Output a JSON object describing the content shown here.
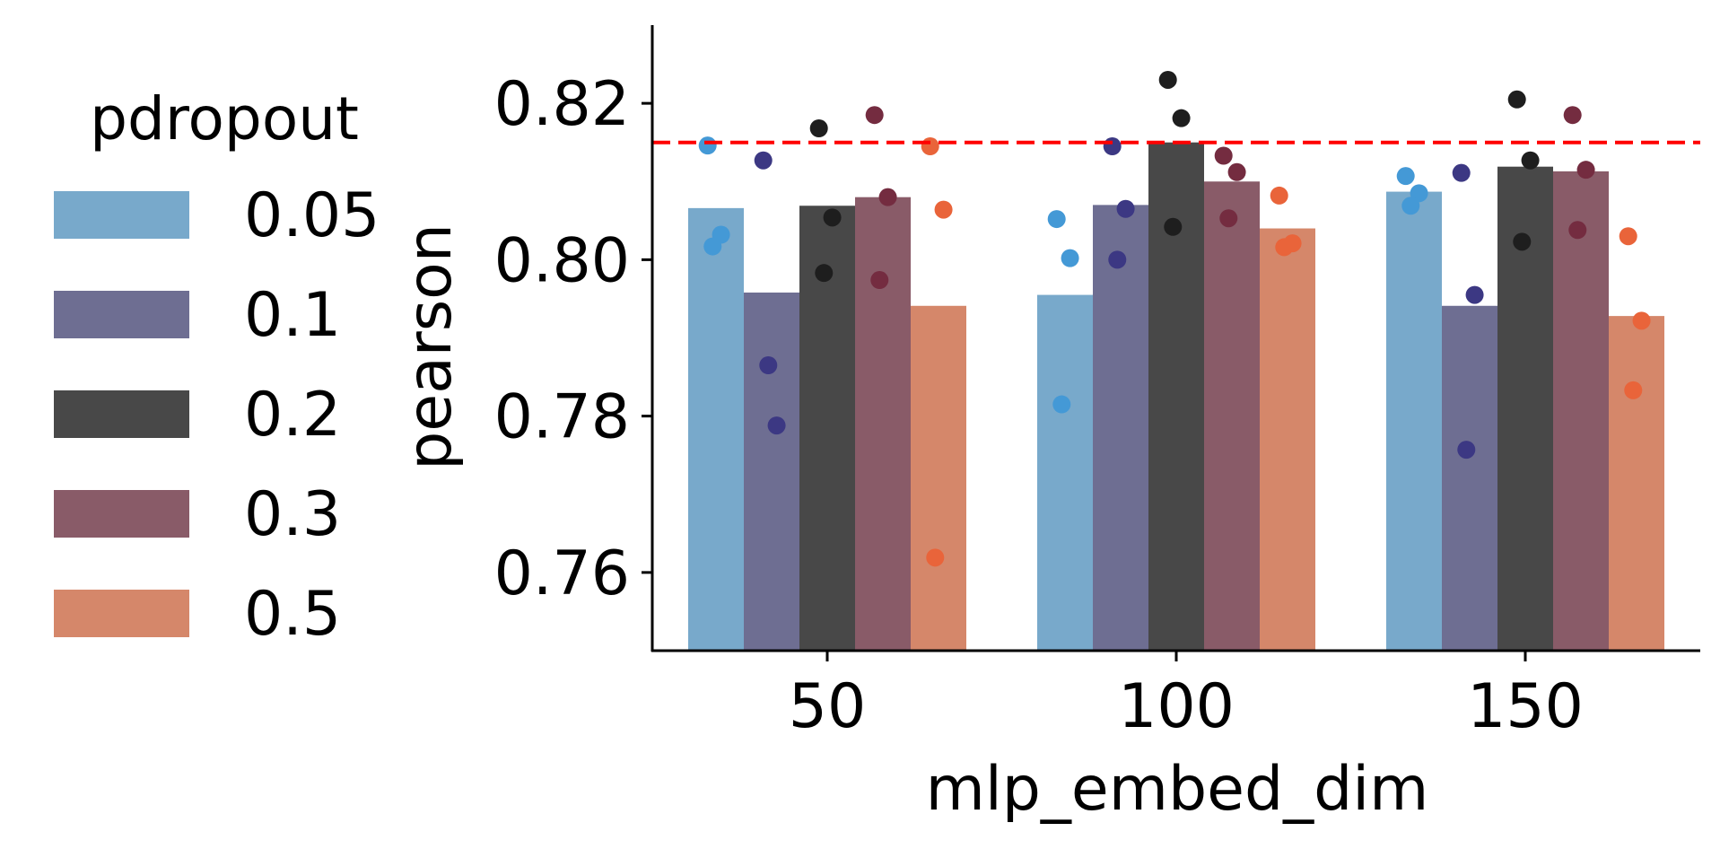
{
  "chart_data": {
    "type": "bar",
    "title": "",
    "xlabel": "mlp_embed_dim",
    "ylabel": "pearson",
    "categories": [
      "50",
      "100",
      "150"
    ],
    "ylim": [
      0.75,
      0.83
    ],
    "yticks": [
      0.76,
      0.78,
      0.8,
      0.82
    ],
    "yticklabels": [
      "0.76",
      "0.78",
      "0.80",
      "0.82"
    ],
    "reference_line": {
      "y": 0.815,
      "color": "#ff0000",
      "style": "dashed"
    },
    "legend": {
      "title": "pdropout",
      "placement": "left, outside plot"
    },
    "grid": false,
    "series": [
      {
        "name": "0.05",
        "bar_color": "#78a9cb",
        "point_color": "#4499d6",
        "values": [
          0.8066,
          0.7955,
          0.8087
        ],
        "points": [
          [
            0.8146,
            0.8032,
            0.8017
          ],
          [
            0.8052,
            0.8002,
            0.7815
          ],
          [
            0.8107,
            0.8085,
            0.8069
          ]
        ]
      },
      {
        "name": "0.1",
        "bar_color": "#6e6e92",
        "point_color": "#3c3883",
        "values": [
          0.7958,
          0.807,
          0.7941
        ],
        "points": [
          [
            0.8127,
            0.7788,
            0.7865
          ],
          [
            0.8145,
            0.8065,
            0.8
          ],
          [
            0.8111,
            0.7955,
            0.7757
          ]
        ]
      },
      {
        "name": "0.2",
        "bar_color": "#484848",
        "point_color": "#1e1e1e",
        "values": [
          0.8069,
          0.815,
          0.8119
        ],
        "points": [
          [
            0.8168,
            0.8054,
            0.7983
          ],
          [
            0.823,
            0.8181,
            0.8042
          ],
          [
            0.8205,
            0.8127,
            0.8023
          ]
        ]
      },
      {
        "name": "0.3",
        "bar_color": "#895b68",
        "point_color": "#742c40",
        "values": [
          0.808,
          0.81,
          0.8113
        ],
        "points": [
          [
            0.8185,
            0.808,
            0.7974
          ],
          [
            0.8133,
            0.8112,
            0.8053
          ],
          [
            0.8185,
            0.8115,
            0.8038
          ]
        ]
      },
      {
        "name": "0.5",
        "bar_color": "#d5876a",
        "point_color": "#e9643a",
        "values": [
          0.7941,
          0.804,
          0.7928
        ],
        "points": [
          [
            0.8145,
            0.8064,
            0.7619
          ],
          [
            0.8082,
            0.8021,
            0.8016
          ],
          [
            0.803,
            0.7922,
            0.7833
          ]
        ]
      }
    ]
  }
}
